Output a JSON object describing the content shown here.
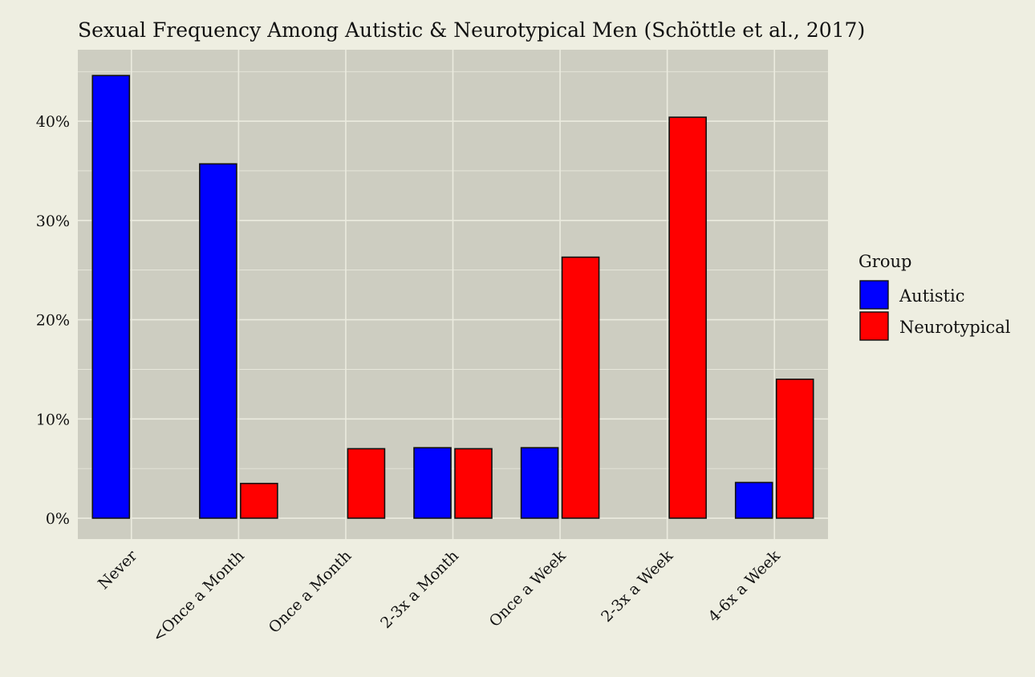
{
  "chart_data": {
    "type": "bar",
    "title": "Sexual Frequency Among Autistic & Neurotypical Men (Schöttle et al., 2017)",
    "xlabel": "",
    "ylabel": "",
    "categories": [
      "Never",
      "<Once a Month",
      "Once a Month",
      "2-3x a Month",
      "Once a Week",
      "2-3x a Week",
      "4-6x a Week"
    ],
    "series": [
      {
        "name": "Autistic",
        "color": "#0000ff",
        "values": [
          44.6,
          35.7,
          0,
          7.1,
          7.1,
          0,
          3.6
        ]
      },
      {
        "name": "Neurotypical",
        "color": "#ff0000",
        "values": [
          0,
          3.5,
          7.0,
          7.0,
          26.3,
          40.4,
          14.0
        ]
      }
    ],
    "ylim": [
      -2.1,
      47.2
    ],
    "yticks": [
      0,
      10,
      20,
      30,
      40
    ],
    "ytick_labels": [
      "0%",
      "10%",
      "20%",
      "30%",
      "40%"
    ],
    "grid": true,
    "legend": {
      "title": "Group",
      "placement": "right"
    },
    "colors": {
      "background": "#eeeee1",
      "panel": "#cdcdc1",
      "grid": "#ebebdf"
    }
  }
}
